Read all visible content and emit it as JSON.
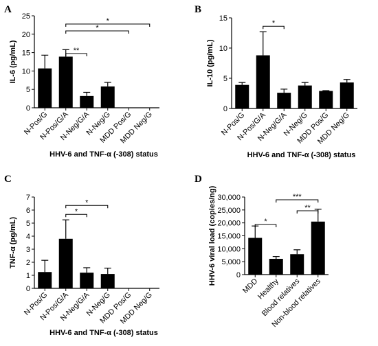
{
  "chart_data": [
    {
      "panel": "A",
      "type": "bar",
      "xlabel": "HHV-6 and TNF-α (-308) status",
      "ylabel": "IL-6 (pg/mL)",
      "ylim": [
        0,
        25
      ],
      "yticks": [
        0,
        5,
        10,
        15,
        20,
        25
      ],
      "ytick_labels": [
        "0",
        "5",
        "10",
        "15",
        "20",
        "25"
      ],
      "categories": [
        "N-Pos/G",
        "N-Pos/G/A",
        "N-Neg/G/A",
        "N-Neg/G",
        "MDD Pos/G",
        "MDD Neg/G"
      ],
      "values": [
        10.7,
        13.9,
        3.2,
        5.8,
        0,
        0
      ],
      "errors": [
        3.6,
        1.9,
        1.0,
        1.1,
        0,
        0
      ],
      "significance": [
        {
          "from": 1,
          "to": 2,
          "label": "**"
        },
        {
          "from": 1,
          "to": 4,
          "label": "*"
        },
        {
          "from": 1,
          "to": 5,
          "label": "*"
        }
      ]
    },
    {
      "panel": "B",
      "type": "bar",
      "xlabel": "HHV-6 and TNF-α (-308) status",
      "ylabel": "IL-10 (pg/mL)",
      "ylim": [
        0,
        15
      ],
      "yticks": [
        0,
        5,
        10,
        15
      ],
      "ytick_labels": [
        "0",
        "5",
        "10",
        "15"
      ],
      "categories": [
        "N-Pos/G",
        "N-Pos/G/A",
        "N-Neg/G/A",
        "N-Neg/G",
        "MDD Pos/G",
        "MDD Neg/G"
      ],
      "values": [
        3.9,
        8.8,
        2.6,
        3.8,
        2.9,
        4.3
      ],
      "errors": [
        0.4,
        3.9,
        0.6,
        0.5,
        0.05,
        0.5
      ],
      "significance": [
        {
          "from": 1,
          "to": 2,
          "label": "*"
        }
      ]
    },
    {
      "panel": "C",
      "type": "bar",
      "xlabel": "HHV-6 and TNF-α (-308) status",
      "ylabel": "TNF-α (pg/mL)",
      "ylim": [
        0,
        7
      ],
      "yticks": [
        0,
        1,
        2,
        3,
        4,
        5,
        6,
        7
      ],
      "ytick_labels": [
        "0",
        "1",
        "2",
        "3",
        "4",
        "5",
        "6",
        "7"
      ],
      "categories": [
        "N-Pos/G",
        "N-Pos/G/A",
        "N-Neg/G/A",
        "N-Neg/G",
        "MDD Pos/G",
        "MDD Neg/G"
      ],
      "values": [
        1.25,
        3.8,
        1.2,
        1.1,
        0,
        0
      ],
      "errors": [
        0.9,
        1.45,
        0.38,
        0.45,
        0,
        0
      ],
      "significance": [
        {
          "from": 1,
          "to": 2,
          "label": "*"
        },
        {
          "from": 1,
          "to": 3,
          "label": "*"
        }
      ]
    },
    {
      "panel": "D",
      "type": "bar",
      "xlabel": "",
      "ylabel": "HHV-6 viral load (copies/ng)",
      "ylim": [
        0,
        30000
      ],
      "yticks": [
        0,
        5000,
        10000,
        15000,
        20000,
        25000,
        30000
      ],
      "ytick_labels": [
        "0",
        "5,000",
        "10,000",
        "15,000",
        "20,000",
        "25,000",
        "30,000"
      ],
      "categories": [
        "MDD",
        "Healthy",
        "Blood relatives",
        "Non-blood relatives"
      ],
      "values": [
        14200,
        6100,
        7900,
        20500
      ],
      "errors": [
        4600,
        900,
        1700,
        4800
      ],
      "significance": [
        {
          "from": 0,
          "to": 1,
          "label": "*"
        },
        {
          "from": 2,
          "to": 3,
          "label": "**"
        },
        {
          "from": 1,
          "to": 3,
          "label": "***"
        }
      ]
    }
  ]
}
